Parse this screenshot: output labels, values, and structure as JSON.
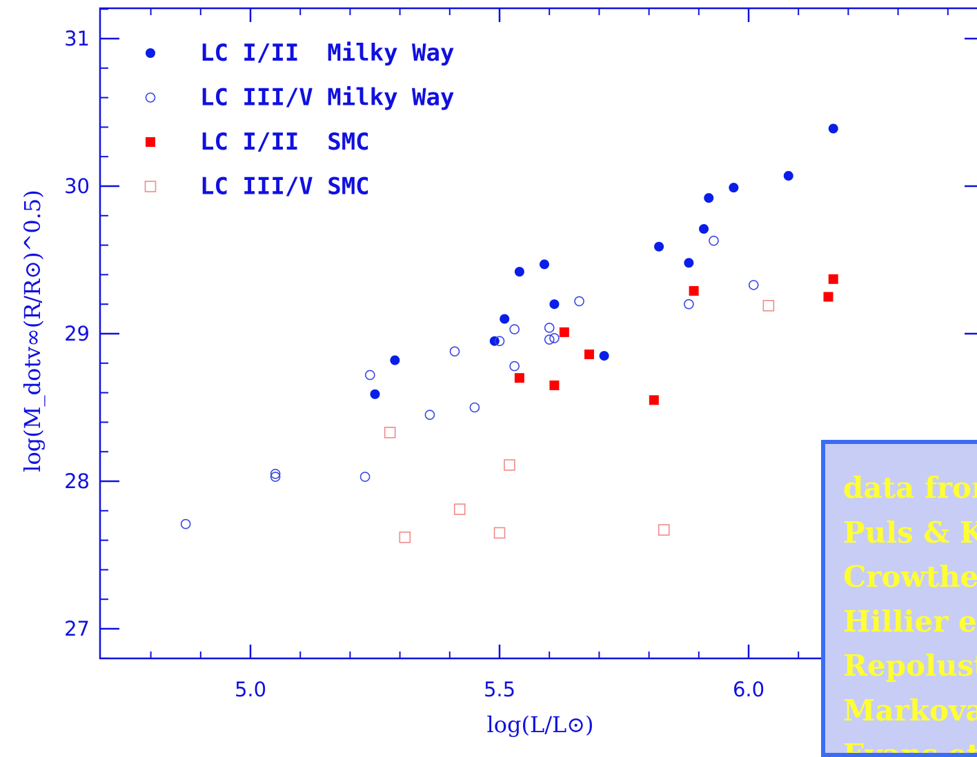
{
  "chart_data": {
    "type": "scatter",
    "title": "",
    "xlabel": "log(L/L⊙)",
    "ylabel": "log(M_dotv∞(R/R⊙)^0.5)",
    "xlim": [
      4.7,
      6.45
    ],
    "ylim": [
      26.8,
      31.2
    ],
    "x_ticks": [
      {
        "value": 5.0,
        "label": "5.0"
      },
      {
        "value": 5.5,
        "label": "5.5"
      },
      {
        "value": 6.0,
        "label": "6.0"
      }
    ],
    "y_ticks": [
      {
        "value": 27,
        "label": "27"
      },
      {
        "value": 28,
        "label": "28"
      },
      {
        "value": 29,
        "label": "29"
      },
      {
        "value": 30,
        "label": "30"
      },
      {
        "value": 31,
        "label": "31"
      }
    ],
    "legend_position": "top-left",
    "series": [
      {
        "name": "LC I/II  Milky Way",
        "marker": "filled-circle",
        "color": "#0a1ee8",
        "points": [
          [
            5.25,
            28.59
          ],
          [
            5.29,
            28.82
          ],
          [
            5.49,
            28.95
          ],
          [
            5.51,
            29.1
          ],
          [
            5.54,
            29.42
          ],
          [
            5.59,
            29.47
          ],
          [
            5.61,
            29.2
          ],
          [
            5.71,
            28.85
          ],
          [
            5.82,
            29.59
          ],
          [
            5.88,
            29.48
          ],
          [
            5.91,
            29.71
          ],
          [
            5.92,
            29.92
          ],
          [
            5.97,
            29.99
          ],
          [
            6.08,
            30.07
          ],
          [
            6.17,
            30.39
          ]
        ]
      },
      {
        "name": "LC III/V Milky Way",
        "marker": "open-circle",
        "color": "#3a46e6",
        "points": [
          [
            4.87,
            27.71
          ],
          [
            5.05,
            28.05
          ],
          [
            5.05,
            28.03
          ],
          [
            5.23,
            28.03
          ],
          [
            5.24,
            28.72
          ],
          [
            5.36,
            28.45
          ],
          [
            5.41,
            28.88
          ],
          [
            5.45,
            28.5
          ],
          [
            5.5,
            28.95
          ],
          [
            5.53,
            29.03
          ],
          [
            5.53,
            28.78
          ],
          [
            5.6,
            29.04
          ],
          [
            5.6,
            28.96
          ],
          [
            5.61,
            28.97
          ],
          [
            5.66,
            29.22
          ],
          [
            5.88,
            29.2
          ],
          [
            5.93,
            29.63
          ],
          [
            6.01,
            29.33
          ]
        ]
      },
      {
        "name": "LC I/II  SMC",
        "marker": "filled-square",
        "color": "#ff0000",
        "points": [
          [
            5.54,
            28.7
          ],
          [
            5.61,
            28.65
          ],
          [
            5.63,
            29.01
          ],
          [
            5.68,
            28.86
          ],
          [
            5.81,
            28.55
          ],
          [
            5.89,
            29.29
          ],
          [
            6.16,
            29.25
          ],
          [
            6.17,
            29.37
          ]
        ]
      },
      {
        "name": "LC III/V SMC",
        "marker": "open-square",
        "color": "#f08a8a",
        "points": [
          [
            5.28,
            28.33
          ],
          [
            5.31,
            27.62
          ],
          [
            5.42,
            27.81
          ],
          [
            5.5,
            27.65
          ],
          [
            5.52,
            28.11
          ],
          [
            5.83,
            27.67
          ],
          [
            6.04,
            29.19
          ]
        ]
      }
    ]
  },
  "sources_box": {
    "lines": [
      "data from",
      "Puls & K",
      "Crowthe",
      "Hillier et",
      "Repolust",
      "Markova",
      "Evans et"
    ],
    "background": "#c8cdf5",
    "border_color": "#3c6cf2",
    "text_color": "#ffff33"
  }
}
